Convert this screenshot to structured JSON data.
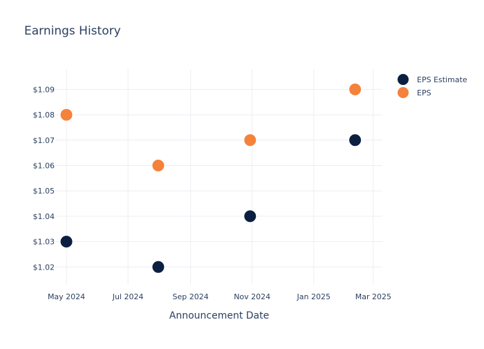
{
  "chart_data": {
    "type": "scatter",
    "title": "Earnings History",
    "xlabel": "Announcement Date",
    "ylabel": "",
    "x_ticks": [
      "2024-05-01",
      "2024-07-01",
      "2024-09-01",
      "2024-11-01",
      "2025-01-01",
      "2025-03-01"
    ],
    "x_tick_labels": [
      "May 2024",
      "Jul 2024",
      "Sep 2024",
      "Nov 2024",
      "Jan 2025",
      "Mar 2025"
    ],
    "xlim": [
      "2024-04-20",
      "2025-03-10"
    ],
    "y_ticks": [
      1.02,
      1.03,
      1.04,
      1.05,
      1.06,
      1.07,
      1.08,
      1.09
    ],
    "y_tick_labels": [
      "$1.02",
      "$1.03",
      "$1.04",
      "$1.05",
      "$1.06",
      "$1.07",
      "$1.08",
      "$1.09"
    ],
    "ylim": [
      1.013,
      1.098
    ],
    "grid": true,
    "legend_position": "top-right",
    "series": [
      {
        "name": "EPS Estimate",
        "color": "#0b1f40",
        "points": [
          {
            "x": "2024-05-01",
            "y": 1.03
          },
          {
            "x": "2024-07-31",
            "y": 1.02
          },
          {
            "x": "2024-10-30",
            "y": 1.04
          },
          {
            "x": "2025-02-11",
            "y": 1.07
          }
        ]
      },
      {
        "name": "EPS",
        "color": "#f4823a",
        "points": [
          {
            "x": "2024-05-01",
            "y": 1.08
          },
          {
            "x": "2024-07-31",
            "y": 1.06
          },
          {
            "x": "2024-10-30",
            "y": 1.07
          },
          {
            "x": "2025-02-11",
            "y": 1.09
          }
        ]
      }
    ]
  }
}
